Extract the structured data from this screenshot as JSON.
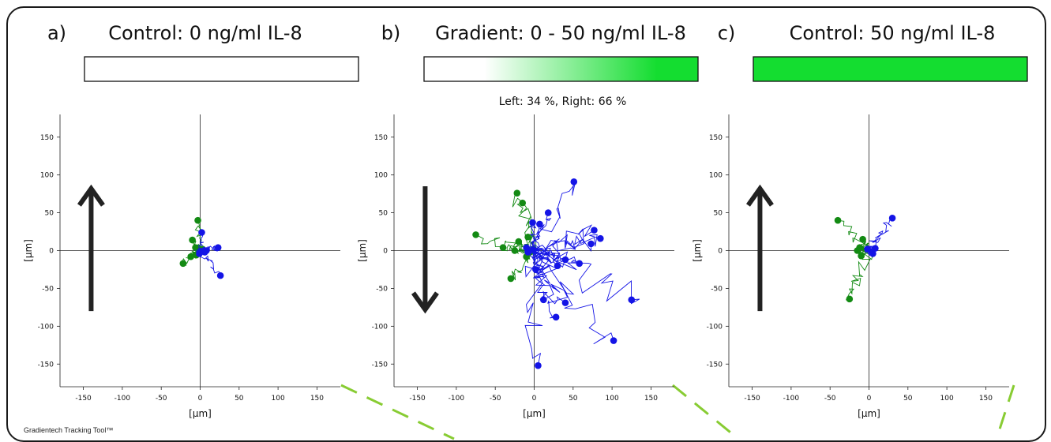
{
  "footer": "Gradientech Tracking Tool™",
  "colors": {
    "green_track": "#138a13",
    "blue_track": "#1414e6",
    "gradient_fill": "#14dd30",
    "axis": "#222222",
    "callout_dash": "#88cc33"
  },
  "panels": [
    {
      "letter": "a)",
      "title": "Control: 0 ng/ml IL-8",
      "bar": "empty",
      "bar_label": "",
      "arrow": "up"
    },
    {
      "letter": "b)",
      "title": "Gradient: 0 - 50 ng/ml IL-8",
      "bar": "gradient",
      "bar_label": "Left: 34 %, Right: 66 %",
      "arrow": "down"
    },
    {
      "letter": "c)",
      "title": "Control: 50 ng/ml IL-8",
      "bar": "full",
      "bar_label": "",
      "arrow": "up"
    }
  ],
  "chart_data": [
    {
      "type": "scatter",
      "title": "Control: 0 ng/ml IL-8",
      "xlabel": "[µm]",
      "ylabel": "[µm]",
      "xlim": [
        -180,
        180
      ],
      "ylim": [
        -180,
        180
      ],
      "xticks": [
        -150,
        -100,
        -50,
        0,
        50,
        100,
        150
      ],
      "yticks": [
        150,
        100,
        50,
        0,
        -50,
        -100,
        -150
      ],
      "grid": false,
      "series": [
        {
          "color": "green",
          "endpoints": [
            [
              -3,
              40
            ],
            [
              -10,
              14
            ],
            [
              -12,
              -8
            ],
            [
              -22,
              -17
            ],
            [
              -6,
              4
            ],
            [
              3,
              2
            ],
            [
              -5,
              -6
            ]
          ]
        },
        {
          "color": "blue",
          "endpoints": [
            [
              2,
              24
            ],
            [
              23,
              4
            ],
            [
              26,
              -33
            ],
            [
              6,
              -2
            ],
            [
              -1,
              -4
            ],
            [
              8,
              0
            ]
          ]
        }
      ]
    },
    {
      "type": "scatter",
      "title": "Gradient: 0 - 50 ng/ml IL-8",
      "xlabel": "[µm]",
      "ylabel": "[µm]",
      "xlim": [
        -180,
        180
      ],
      "ylim": [
        -180,
        180
      ],
      "xticks": [
        -150,
        -100,
        -50,
        0,
        50,
        100,
        150
      ],
      "yticks": [
        150,
        100,
        50,
        0,
        -50,
        -100,
        -150
      ],
      "grid": false,
      "series": [
        {
          "color": "green",
          "endpoints": [
            [
              -75,
              21
            ],
            [
              -22,
              76
            ],
            [
              -15,
              63
            ],
            [
              -30,
              -37
            ],
            [
              -40,
              4
            ],
            [
              -20,
              12
            ],
            [
              -8,
              18
            ],
            [
              -25,
              0
            ],
            [
              -10,
              -8
            ]
          ]
        },
        {
          "color": "blue",
          "endpoints": [
            [
              51,
              91
            ],
            [
              18,
              50
            ],
            [
              7,
              35
            ],
            [
              -2,
              37
            ],
            [
              77,
              27
            ],
            [
              85,
              16
            ],
            [
              73,
              9
            ],
            [
              -10,
              4
            ],
            [
              2,
              -25
            ],
            [
              30,
              -20
            ],
            [
              58,
              -17
            ],
            [
              40,
              -12
            ],
            [
              12,
              -65
            ],
            [
              40,
              -69
            ],
            [
              28,
              -88
            ],
            [
              125,
              -65
            ],
            [
              102,
              -119
            ],
            [
              5,
              -152
            ],
            [
              -8,
              -2
            ]
          ]
        }
      ]
    },
    {
      "type": "scatter",
      "title": "Control: 50 ng/ml IL-8",
      "xlabel": "[µm]",
      "ylabel": "[µm]",
      "xlim": [
        -180,
        180
      ],
      "ylim": [
        -180,
        180
      ],
      "xticks": [
        -150,
        -100,
        -50,
        0,
        50,
        100,
        150
      ],
      "yticks": [
        150,
        100,
        50,
        0,
        -50,
        -100,
        -150
      ],
      "grid": false,
      "series": [
        {
          "color": "green",
          "endpoints": [
            [
              -40,
              40
            ],
            [
              -25,
              -64
            ],
            [
              -8,
              15
            ],
            [
              -12,
              4
            ],
            [
              -10,
              -7
            ],
            [
              -15,
              0
            ]
          ]
        },
        {
          "color": "blue",
          "endpoints": [
            [
              30,
              43
            ],
            [
              5,
              -4
            ],
            [
              -2,
              2
            ],
            [
              8,
              3
            ]
          ]
        }
      ]
    }
  ]
}
